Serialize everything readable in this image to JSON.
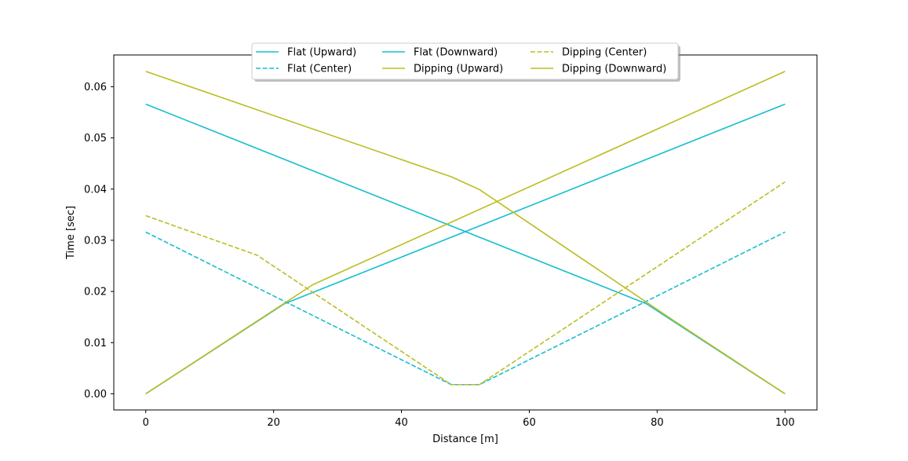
{
  "chart_data": {
    "type": "line",
    "title": "",
    "xlabel": "Distance [m]",
    "ylabel": "Time [sec]",
    "xlim": [
      -5,
      105
    ],
    "ylim": [
      -0.00315,
      0.0662
    ],
    "xticks": [
      0,
      20,
      40,
      60,
      80,
      100
    ],
    "xtick_labels": [
      "0",
      "20",
      "40",
      "60",
      "80",
      "100"
    ],
    "yticks": [
      0.0,
      0.01,
      0.02,
      0.03,
      0.04,
      0.05,
      0.06
    ],
    "ytick_labels": [
      "0.00",
      "0.01",
      "0.02",
      "0.03",
      "0.04",
      "0.05",
      "0.06"
    ],
    "grid": false,
    "legend": {
      "position": "top-center",
      "columns": 3
    },
    "series": [
      {
        "name": "Flat (Upward)",
        "color": "#17becf",
        "dash": "solid",
        "x": [
          0,
          21.7,
          100
        ],
        "y": [
          0.0,
          0.0176,
          0.0566
        ]
      },
      {
        "name": "Flat (Center)",
        "color": "#17becf",
        "dash": "dashed",
        "x": [
          0,
          47.8,
          52.2,
          100
        ],
        "y": [
          0.0316,
          0.0018,
          0.0018,
          0.0316
        ]
      },
      {
        "name": "Flat (Downward)",
        "color": "#17becf",
        "dash": "solid",
        "x": [
          0,
          78.3,
          100
        ],
        "y": [
          0.0566,
          0.0176,
          0.0
        ]
      },
      {
        "name": "Dipping (Upward)",
        "color": "#bcbd22",
        "dash": "solid",
        "x": [
          0,
          26.1,
          100
        ],
        "y": [
          0.0,
          0.0213,
          0.063
        ]
      },
      {
        "name": "Dipping (Center)",
        "color": "#bcbd22",
        "dash": "dashed",
        "x": [
          0,
          17.4,
          47.8,
          52.2,
          100
        ],
        "y": [
          0.0348,
          0.0271,
          0.0018,
          0.0018,
          0.0414
        ]
      },
      {
        "name": "Dipping (Downward)",
        "color": "#bcbd22",
        "dash": "solid",
        "x": [
          0,
          47.8,
          52.2,
          82.6,
          100
        ],
        "y": [
          0.063,
          0.0424,
          0.0399,
          0.0143,
          0.0
        ]
      }
    ]
  }
}
